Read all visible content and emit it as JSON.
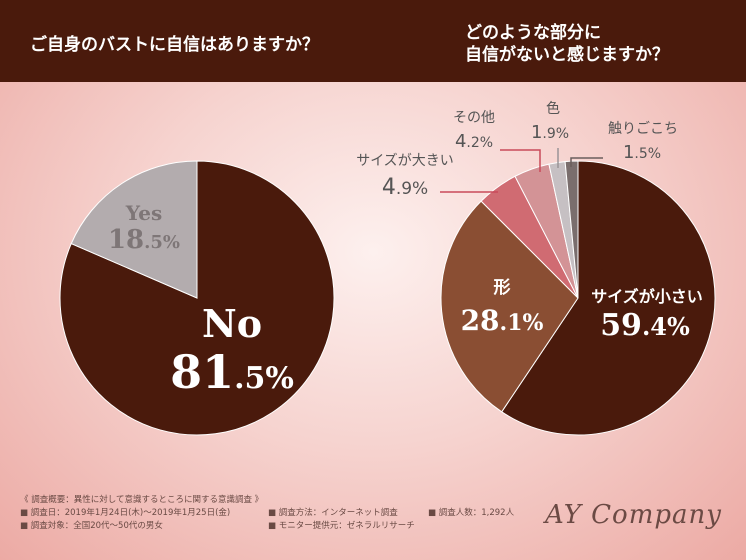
{
  "questions": {
    "q1": "ご自身のバストに自信はありますか？",
    "q2_line1": "どのような部分に",
    "q2_line2": "自信がないと感じますか？"
  },
  "chart_data": [
    {
      "type": "pie",
      "title": "ご自身のバストに自信はありますか？",
      "categories": [
        "No",
        "Yes"
      ],
      "values": [
        81.5,
        18.5
      ],
      "colors": [
        "#4a1a0c",
        "#b3acae"
      ]
    },
    {
      "type": "pie",
      "title": "どのような部分に自信がないと感じますか？",
      "categories": [
        "サイズが小さい",
        "形",
        "サイズが大きい",
        "その他",
        "色",
        "触りごこち"
      ],
      "values": [
        59.4,
        28.1,
        4.9,
        4.2,
        1.9,
        1.5
      ],
      "colors": [
        "#4a1a0c",
        "#8a4e33",
        "#d06b72",
        "#d39396",
        "#c6c0c3",
        "#7a6e6d"
      ]
    }
  ],
  "labels": {
    "pie1_no_name": "No",
    "pie1_no_int": "81",
    "pie1_no_dec": ".5%",
    "pie1_yes_name": "Yes",
    "pie1_yes_int": "18",
    "pie1_yes_dec": ".5%",
    "pie2_small_name": "サイズが小さい",
    "pie2_small_int": "59",
    "pie2_small_dec": ".4%",
    "pie2_shape_name": "形",
    "pie2_shape_int": "28",
    "pie2_shape_dec": ".1%",
    "pie2_large_name": "サイズが大きい",
    "pie2_large_int": "4",
    "pie2_large_dec": ".9%",
    "pie2_other_name": "その他",
    "pie2_other_int": "4",
    "pie2_other_dec": ".2%",
    "pie2_color_name": "色",
    "pie2_color_int": "1",
    "pie2_color_dec": ".9%",
    "pie2_touch_name": "触りごこち",
    "pie2_touch_int": "1",
    "pie2_touch_dec": ".5%"
  },
  "footer": {
    "summary": "《 調査概要：異性に対して意識するところに関する意識調査 》",
    "date": "■ 調査日：2019年1月24日(木)～2019年1月25日(金)",
    "method": "■ 調査方法：インターネット調査",
    "count": "■ 調査人数：1,292人",
    "target": "■ 調査対象：全国20代～50代の男女",
    "panel": "■ モニター提供元：ゼネラルリサーチ"
  },
  "brand": "AY Company"
}
